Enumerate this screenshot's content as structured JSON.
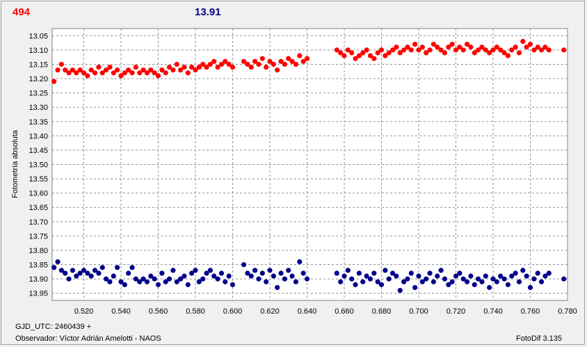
{
  "header": {
    "left_value": "494",
    "right_value": "13.91"
  },
  "footer": {
    "gjd_line": "GJD_UTC: 2460439 +",
    "observer_line": "Observador: Víctor Adrián Amelotti - NAOS",
    "software": "FotoDif 3.135"
  },
  "colors": {
    "series1": "#ff0000",
    "series2": "#00008b",
    "grid": "#909090",
    "plot_bg": "#ffffff"
  },
  "chart_data": {
    "type": "scatter",
    "ylabel": "Fotometría absoluta",
    "xlabel": "",
    "y_reversed": true,
    "grid": true,
    "xlim": [
      0.503,
      0.78
    ],
    "ylim": [
      13.025,
      13.975
    ],
    "xticks": [
      "0.520",
      "0.540",
      "0.560",
      "0.580",
      "0.600",
      "0.620",
      "0.640",
      "0.660",
      "0.680",
      "0.700",
      "0.720",
      "0.740",
      "0.760",
      "0.780"
    ],
    "yticks": [
      "13.05",
      "13.10",
      "13.15",
      "13.20",
      "13.25",
      "13.30",
      "13.35",
      "13.40",
      "13.45",
      "13.50",
      "13.55",
      "13.60",
      "13.65",
      "13.70",
      "13.75",
      "13.80",
      "13.85",
      "13.90",
      "13.95"
    ],
    "series": [
      {
        "color": "#ff0000",
        "x": [
          0.504,
          0.506,
          0.508,
          0.51,
          0.512,
          0.514,
          0.516,
          0.518,
          0.52,
          0.522,
          0.524,
          0.526,
          0.528,
          0.53,
          0.532,
          0.534,
          0.536,
          0.538,
          0.54,
          0.542,
          0.544,
          0.546,
          0.548,
          0.55,
          0.552,
          0.554,
          0.556,
          0.558,
          0.56,
          0.562,
          0.564,
          0.566,
          0.568,
          0.57,
          0.572,
          0.574,
          0.576,
          0.578,
          0.58,
          0.582,
          0.584,
          0.586,
          0.588,
          0.59,
          0.592,
          0.594,
          0.596,
          0.598,
          0.6,
          0.606,
          0.608,
          0.61,
          0.612,
          0.614,
          0.616,
          0.618,
          0.62,
          0.622,
          0.624,
          0.626,
          0.628,
          0.63,
          0.632,
          0.634,
          0.636,
          0.638,
          0.64,
          0.656,
          0.658,
          0.66,
          0.662,
          0.664,
          0.666,
          0.668,
          0.67,
          0.672,
          0.674,
          0.676,
          0.678,
          0.68,
          0.682,
          0.684,
          0.686,
          0.688,
          0.69,
          0.692,
          0.694,
          0.696,
          0.698,
          0.7,
          0.702,
          0.704,
          0.706,
          0.708,
          0.71,
          0.712,
          0.714,
          0.716,
          0.718,
          0.72,
          0.722,
          0.724,
          0.726,
          0.728,
          0.73,
          0.732,
          0.734,
          0.736,
          0.738,
          0.74,
          0.742,
          0.744,
          0.746,
          0.748,
          0.75,
          0.752,
          0.754,
          0.756,
          0.758,
          0.76,
          0.762,
          0.764,
          0.766,
          0.768,
          0.77,
          0.778
        ],
        "values": [
          13.21,
          13.17,
          13.15,
          13.17,
          13.18,
          13.17,
          13.18,
          13.17,
          13.18,
          13.19,
          13.17,
          13.18,
          13.16,
          13.18,
          13.17,
          13.16,
          13.18,
          13.17,
          13.19,
          13.18,
          13.17,
          13.18,
          13.16,
          13.18,
          13.17,
          13.18,
          13.17,
          13.18,
          13.19,
          13.17,
          13.18,
          13.16,
          13.17,
          13.15,
          13.17,
          13.16,
          13.18,
          13.16,
          13.17,
          13.16,
          13.15,
          13.16,
          13.15,
          13.14,
          13.16,
          13.15,
          13.14,
          13.15,
          13.16,
          13.14,
          13.15,
          13.16,
          13.14,
          13.15,
          13.13,
          13.16,
          13.14,
          13.15,
          13.17,
          13.14,
          13.15,
          13.13,
          13.14,
          13.15,
          13.12,
          13.14,
          13.13,
          13.1,
          13.11,
          13.12,
          13.1,
          13.11,
          13.13,
          13.12,
          13.11,
          13.1,
          13.12,
          13.13,
          13.11,
          13.1,
          13.12,
          13.11,
          13.1,
          13.09,
          13.11,
          13.1,
          13.09,
          13.1,
          13.08,
          13.1,
          13.09,
          13.11,
          13.1,
          13.08,
          13.09,
          13.1,
          13.11,
          13.09,
          13.08,
          13.1,
          13.09,
          13.1,
          13.08,
          13.09,
          13.11,
          13.1,
          13.09,
          13.1,
          13.11,
          13.1,
          13.09,
          13.1,
          13.11,
          13.12,
          13.1,
          13.09,
          13.11,
          13.07,
          13.09,
          13.08,
          13.1,
          13.09,
          13.1,
          13.09,
          13.1,
          13.1
        ]
      },
      {
        "color": "#00008b",
        "x": [
          0.504,
          0.506,
          0.508,
          0.51,
          0.512,
          0.514,
          0.516,
          0.518,
          0.52,
          0.522,
          0.524,
          0.526,
          0.528,
          0.53,
          0.532,
          0.534,
          0.536,
          0.538,
          0.54,
          0.542,
          0.544,
          0.546,
          0.548,
          0.55,
          0.552,
          0.554,
          0.556,
          0.558,
          0.56,
          0.562,
          0.564,
          0.566,
          0.568,
          0.57,
          0.572,
          0.574,
          0.576,
          0.578,
          0.58,
          0.582,
          0.584,
          0.586,
          0.588,
          0.59,
          0.592,
          0.594,
          0.596,
          0.598,
          0.6,
          0.606,
          0.608,
          0.61,
          0.612,
          0.614,
          0.616,
          0.618,
          0.62,
          0.622,
          0.624,
          0.626,
          0.628,
          0.63,
          0.632,
          0.634,
          0.636,
          0.638,
          0.64,
          0.656,
          0.658,
          0.66,
          0.662,
          0.664,
          0.666,
          0.668,
          0.67,
          0.672,
          0.674,
          0.676,
          0.678,
          0.68,
          0.682,
          0.684,
          0.686,
          0.688,
          0.69,
          0.692,
          0.694,
          0.696,
          0.698,
          0.7,
          0.702,
          0.704,
          0.706,
          0.708,
          0.71,
          0.712,
          0.714,
          0.716,
          0.718,
          0.72,
          0.722,
          0.724,
          0.726,
          0.728,
          0.73,
          0.732,
          0.734,
          0.736,
          0.738,
          0.74,
          0.742,
          0.744,
          0.746,
          0.748,
          0.75,
          0.752,
          0.754,
          0.756,
          0.758,
          0.76,
          0.762,
          0.764,
          0.766,
          0.768,
          0.77,
          0.778
        ],
        "values": [
          13.86,
          13.84,
          13.87,
          13.88,
          13.9,
          13.87,
          13.89,
          13.88,
          13.87,
          13.88,
          13.89,
          13.87,
          13.88,
          13.86,
          13.9,
          13.91,
          13.89,
          13.86,
          13.91,
          13.92,
          13.88,
          13.86,
          13.9,
          13.91,
          13.9,
          13.91,
          13.89,
          13.9,
          13.92,
          13.88,
          13.91,
          13.9,
          13.87,
          13.91,
          13.9,
          13.89,
          13.92,
          13.88,
          13.87,
          13.91,
          13.9,
          13.88,
          13.87,
          13.89,
          13.9,
          13.88,
          13.91,
          13.89,
          13.92,
          13.85,
          13.88,
          13.89,
          13.87,
          13.9,
          13.88,
          13.91,
          13.87,
          13.89,
          13.93,
          13.88,
          13.9,
          13.87,
          13.89,
          13.91,
          13.84,
          13.88,
          13.9,
          13.88,
          13.91,
          13.89,
          13.87,
          13.9,
          13.92,
          13.88,
          13.91,
          13.89,
          13.9,
          13.88,
          13.91,
          13.92,
          13.87,
          13.9,
          13.88,
          13.89,
          13.94,
          13.91,
          13.9,
          13.88,
          13.93,
          13.89,
          13.91,
          13.9,
          13.88,
          13.91,
          13.89,
          13.87,
          13.9,
          13.92,
          13.91,
          13.89,
          13.88,
          13.9,
          13.91,
          13.89,
          13.92,
          13.9,
          13.91,
          13.89,
          13.93,
          13.9,
          13.91,
          13.89,
          13.9,
          13.92,
          13.89,
          13.88,
          13.91,
          13.87,
          13.89,
          13.93,
          13.9,
          13.88,
          13.91,
          13.89,
          13.88,
          13.9
        ]
      }
    ]
  }
}
